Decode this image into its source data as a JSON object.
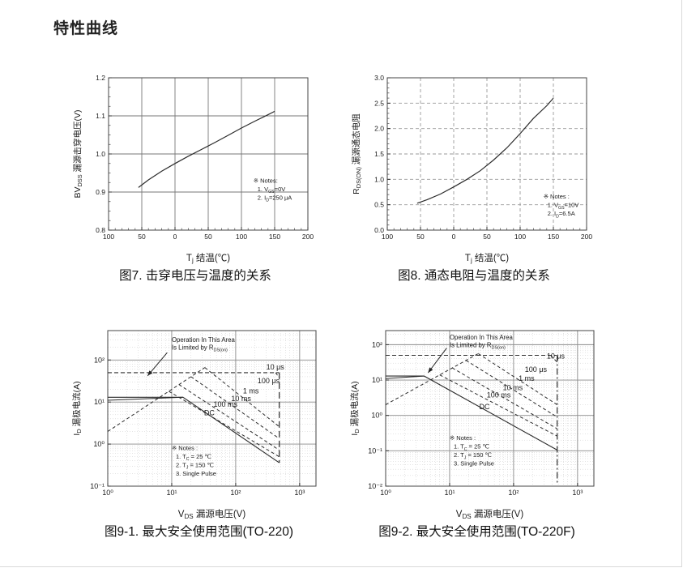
{
  "page": {
    "title": "特性曲线"
  },
  "chart_data": [
    {
      "type": "line",
      "caption": "图7. 击穿电压与温度的关系",
      "xlabel": "T_j_ 结温(℃)",
      "ylabel": "BV_DSS_ 漏源击穿电压(V)",
      "x_scale": "linear",
      "xlim": [
        -100,
        200
      ],
      "y_scale": "linear",
      "ylim": [
        0.8,
        1.2
      ],
      "x_ticks": [
        {
          "v": -100,
          "label": "100"
        },
        {
          "v": -50,
          "label": "50"
        },
        {
          "v": 0,
          "label": "0"
        },
        {
          "v": 50,
          "label": "50"
        },
        {
          "v": 100,
          "label": "100"
        },
        {
          "v": 150,
          "label": "150"
        },
        {
          "v": 200,
          "label": "200"
        }
      ],
      "y_ticks": [
        {
          "v": 0.8,
          "label": "0.8"
        },
        {
          "v": 0.9,
          "label": "0.9"
        },
        {
          "v": 1.0,
          "label": "1.0"
        },
        {
          "v": 1.1,
          "label": "1.1"
        },
        {
          "v": 1.2,
          "label": "1.2"
        }
      ],
      "x_grid": [
        -50,
        0,
        50,
        100,
        150
      ],
      "y_grid": [
        0.9,
        1.0,
        1.1
      ],
      "x_minor_step": 10,
      "y_minor_step": 0.025,
      "grid_style": "solid",
      "series": [
        {
          "name": "bvdss-vs-tj",
          "style": "solid",
          "width": 1.2,
          "points": [
            [
              -55,
              0.912
            ],
            [
              -40,
              0.932
            ],
            [
              -20,
              0.955
            ],
            [
              0,
              0.975
            ],
            [
              20,
              0.994
            ],
            [
              40,
              1.012
            ],
            [
              60,
              1.03
            ],
            [
              80,
              1.049
            ],
            [
              100,
              1.068
            ],
            [
              120,
              1.086
            ],
            [
              140,
              1.103
            ],
            [
              150,
              1.112
            ]
          ]
        }
      ],
      "labels": [],
      "notes": {
        "x": 118,
        "y": 0.925,
        "lines": [
          "※ Notes:",
          "1. V_GS_=0V",
          "2. I_D_=250 μA"
        ]
      }
    },
    {
      "type": "line",
      "caption": "图8. 通态电阻与温度的关系",
      "xlabel": "T_j_ 结温(℃)",
      "ylabel": "R_DS(ON)_ 漏源通态电阻",
      "x_scale": "linear",
      "xlim": [
        -100,
        200
      ],
      "y_scale": "linear",
      "ylim": [
        0,
        3
      ],
      "x_ticks": [
        {
          "v": -100,
          "label": "100"
        },
        {
          "v": -50,
          "label": "50"
        },
        {
          "v": 0,
          "label": "0"
        },
        {
          "v": 50,
          "label": "50"
        },
        {
          "v": 100,
          "label": "100"
        },
        {
          "v": 150,
          "label": "150"
        },
        {
          "v": 200,
          "label": "200"
        }
      ],
      "y_ticks": [
        {
          "v": 0,
          "label": "0.0"
        },
        {
          "v": 0.5,
          "label": "0.5"
        },
        {
          "v": 1.0,
          "label": "1.0"
        },
        {
          "v": 1.5,
          "label": "1.5"
        },
        {
          "v": 2.0,
          "label": "2.0"
        },
        {
          "v": 2.5,
          "label": "2.5"
        },
        {
          "v": 3.0,
          "label": "3.0"
        }
      ],
      "x_grid": [
        -50,
        0,
        50,
        100,
        150
      ],
      "y_grid": [
        0.5,
        1.0,
        1.5,
        2.0,
        2.5
      ],
      "x_minor_step": 10,
      "y_minor_step": 0.1,
      "grid_style": "dashed",
      "series": [
        {
          "name": "rdson-vs-tj",
          "style": "solid",
          "width": 1.2,
          "points": [
            [
              -55,
              0.53
            ],
            [
              -40,
              0.6
            ],
            [
              -20,
              0.71
            ],
            [
              0,
              0.85
            ],
            [
              20,
              1.0
            ],
            [
              40,
              1.17
            ],
            [
              60,
              1.38
            ],
            [
              80,
              1.62
            ],
            [
              100,
              1.9
            ],
            [
              120,
              2.2
            ],
            [
              140,
              2.45
            ],
            [
              150,
              2.6
            ]
          ]
        }
      ],
      "labels": [],
      "notes": {
        "x": 135,
        "y": 0.62,
        "lines": [
          "※ Notes :",
          "1. V_GS_=10V",
          "2. I_D_=6.5A"
        ]
      }
    },
    {
      "type": "line",
      "caption": "图9-1. 最大安全使用范围(TO-220)",
      "xlabel": "V_DS_ 漏源电压(V)",
      "ylabel": "I_D_ 漏极电流(A)",
      "x_scale": "log",
      "xlim": [
        1,
        1800
      ],
      "y_scale": "log",
      "ylim": [
        0.1,
        500
      ],
      "x_ticks": [
        {
          "v": 1,
          "label": "10⁰"
        },
        {
          "v": 10,
          "label": "10¹"
        },
        {
          "v": 100,
          "label": "10²"
        },
        {
          "v": 1000,
          "label": "10³"
        }
      ],
      "y_ticks": [
        {
          "v": 0.1,
          "label": "10⁻¹"
        },
        {
          "v": 1,
          "label": "10⁰"
        },
        {
          "v": 10,
          "label": "10¹"
        },
        {
          "v": 100,
          "label": "10²"
        }
      ],
      "x_grid": [
        10,
        100,
        1000
      ],
      "y_grid": [
        1,
        10,
        100
      ],
      "grid_style": "log",
      "series": [
        {
          "name": "pulsed-current-cap",
          "style": "cap",
          "width": 1.1,
          "points": [
            [
              1,
              50
            ],
            [
              480,
              50
            ]
          ]
        },
        {
          "name": "rdson-limit",
          "style": "dash",
          "width": 1,
          "points": [
            [
              1,
              2
            ],
            [
              33,
              66
            ]
          ]
        },
        {
          "name": "10us-knee",
          "style": "dash",
          "width": 1,
          "points": [
            [
              420,
              50
            ],
            [
              480,
              38
            ]
          ]
        },
        {
          "name": "vds-max-limit",
          "style": "longdash",
          "width": 1.2,
          "points": [
            [
              480,
              50
            ],
            [
              480,
              0.36
            ]
          ]
        },
        {
          "name": "100us",
          "style": "dash",
          "width": 1,
          "points": [
            [
              33,
              66
            ],
            [
              480,
              2.6
            ]
          ]
        },
        {
          "name": "1ms",
          "style": "dash",
          "width": 1,
          "points": [
            [
              20,
              40
            ],
            [
              480,
              1.35
            ]
          ]
        },
        {
          "name": "10ms",
          "style": "dash",
          "width": 1,
          "points": [
            [
              13,
              26
            ],
            [
              480,
              0.72
            ]
          ]
        },
        {
          "name": "100ms",
          "style": "dash",
          "width": 1,
          "points": [
            [
              9,
              18
            ],
            [
              480,
              0.5
            ]
          ]
        },
        {
          "name": "dc-upper",
          "style": "solid",
          "width": 1.1,
          "points": [
            [
              1,
              13
            ],
            [
              15,
              13
            ],
            [
              480,
              0.36
            ]
          ]
        },
        {
          "name": "dc-lower",
          "style": "solid",
          "width": 1,
          "points": [
            [
              1,
              11
            ],
            [
              15,
              13
            ]
          ]
        }
      ],
      "labels": [
        {
          "x": 300,
          "y": 60,
          "text": "10 μs"
        },
        {
          "x": 220,
          "y": 28,
          "text": "100 μs"
        },
        {
          "x": 130,
          "y": 16,
          "text": "1 ms"
        },
        {
          "x": 85,
          "y": 10.5,
          "text": "10 ms"
        },
        {
          "x": 45,
          "y": 7.8,
          "text": "100 ms"
        },
        {
          "x": 32,
          "y": 4.8,
          "text": "DC"
        }
      ],
      "annotation": {
        "x": 10,
        "y": 270,
        "lines": [
          "Operation In This Area",
          "Is Limited by R_DS(on)_"
        ],
        "arrow": {
          "x1": 8.5,
          "y1": 150,
          "x2": 4.2,
          "y2": 42
        }
      },
      "notes": {
        "x": 10,
        "y": 0.72,
        "lines": [
          "※ Notes :",
          "1. T_C_ = 25 ℃",
          "2. T_J_ = 150 ℃",
          "3. Single Pulse"
        ]
      }
    },
    {
      "type": "line",
      "caption": "图9-2. 最大安全使用范围(TO-220F)",
      "xlabel": "V_DS_ 漏源电压(V)",
      "ylabel": "I_D_ 漏极电流(A)",
      "x_scale": "log",
      "xlim": [
        1,
        1800
      ],
      "y_scale": "log",
      "ylim": [
        0.01,
        250
      ],
      "x_ticks": [
        {
          "v": 1,
          "label": "10⁰"
        },
        {
          "v": 10,
          "label": "10¹"
        },
        {
          "v": 100,
          "label": "10²"
        },
        {
          "v": 1000,
          "label": "10³"
        }
      ],
      "y_ticks": [
        {
          "v": 0.01,
          "label": "10⁻²"
        },
        {
          "v": 0.1,
          "label": "10⁻¹"
        },
        {
          "v": 1,
          "label": "10⁰"
        },
        {
          "v": 10,
          "label": "10¹"
        },
        {
          "v": 100,
          "label": "10²"
        }
      ],
      "x_grid": [
        10,
        100,
        1000
      ],
      "y_grid": [
        0.1,
        1,
        10,
        100
      ],
      "grid_style": "log",
      "series": [
        {
          "name": "pulsed-current-cap",
          "style": "cap",
          "width": 1.1,
          "points": [
            [
              1,
              50
            ],
            [
              470,
              50
            ]
          ]
        },
        {
          "name": "rdson-limit",
          "style": "dash",
          "width": 1,
          "points": [
            [
              1,
              2
            ],
            [
              28,
              56
            ]
          ]
        },
        {
          "name": "10us-knee",
          "style": "dash",
          "width": 1,
          "points": [
            [
              380,
              50
            ],
            [
              480,
              32
            ]
          ]
        },
        {
          "name": "vds-max-limit",
          "style": "dashdot",
          "width": 1.2,
          "points": [
            [
              480,
              50
            ],
            [
              480,
              0.012
            ]
          ]
        },
        {
          "name": "100us",
          "style": "dash",
          "width": 1,
          "points": [
            [
              28,
              56
            ],
            [
              480,
              2.0
            ]
          ]
        },
        {
          "name": "1ms",
          "style": "dash",
          "width": 1,
          "points": [
            [
              18,
              36
            ],
            [
              480,
              0.9
            ]
          ]
        },
        {
          "name": "10ms",
          "style": "dash",
          "width": 1,
          "points": [
            [
              11,
              22
            ],
            [
              480,
              0.42
            ]
          ]
        },
        {
          "name": "100ms",
          "style": "dash",
          "width": 1,
          "points": [
            [
              7,
              14
            ],
            [
              480,
              0.26
            ]
          ]
        },
        {
          "name": "dc-upper",
          "style": "solid",
          "width": 1.1,
          "points": [
            [
              1,
              13
            ],
            [
              4,
              13
            ],
            [
              480,
              0.105
            ]
          ]
        },
        {
          "name": "dc-lower",
          "style": "solid",
          "width": 1,
          "points": [
            [
              1,
              11
            ],
            [
              4,
              13
            ]
          ]
        }
      ],
      "labels": [
        {
          "x": 330,
          "y": 40,
          "text": "10 μs"
        },
        {
          "x": 150,
          "y": 17,
          "text": "100 μs"
        },
        {
          "x": 120,
          "y": 9.5,
          "text": "1 ms"
        },
        {
          "x": 68,
          "y": 5.2,
          "text": "10 ms"
        },
        {
          "x": 38,
          "y": 3.2,
          "text": "100 ms"
        },
        {
          "x": 29,
          "y": 1.5,
          "text": "DC"
        }
      ],
      "annotation": {
        "x": 10,
        "y": 140,
        "lines": [
          "Operation In This Area",
          "Is Limited by R_DS(on)_"
        ],
        "arrow": {
          "x1": 9,
          "y1": 80,
          "x2": 4.6,
          "y2": 16
        }
      },
      "notes": {
        "x": 10,
        "y": 0.2,
        "lines": [
          "※ Notes :",
          "1. T_C_ = 25 ℃",
          "2. T_J_ = 150 ℃",
          "3. Single Pulse"
        ]
      }
    }
  ]
}
